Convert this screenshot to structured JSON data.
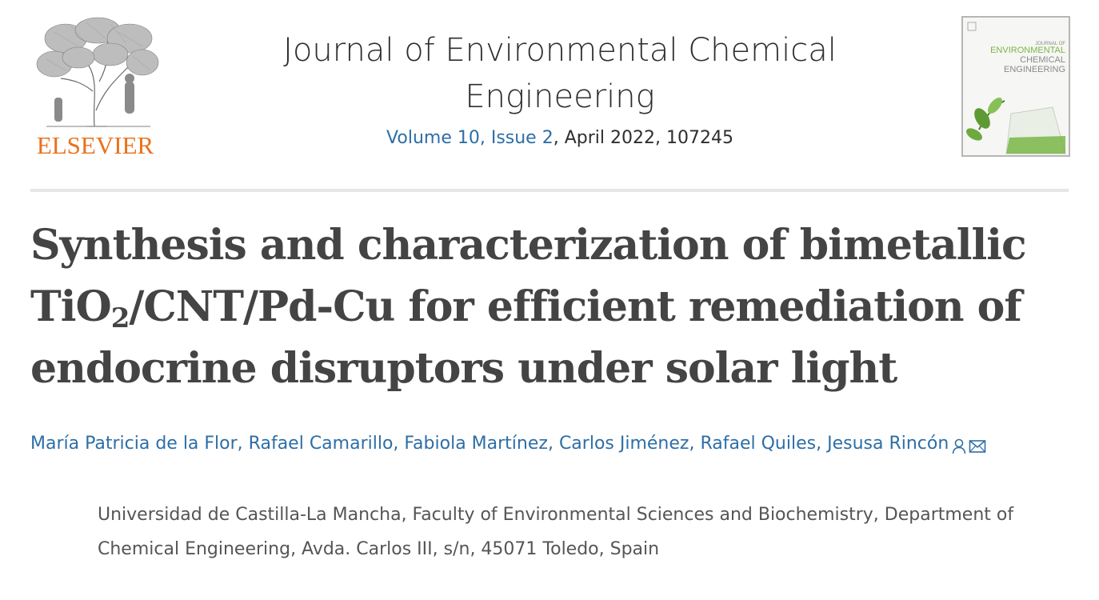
{
  "publisher": {
    "name": "ELSEVIER",
    "logo_icon": "elsevier-tree-logo",
    "brand_color": "#e9711c"
  },
  "journal": {
    "title_line1": "Journal of Environmental Chemical",
    "title_line2": "Engineering",
    "volume_issue": "Volume 10, Issue 2",
    "date_article": ", April 2022, 107245",
    "cover": {
      "small": "JOURNAL OF",
      "line1": "ENVIRONMENTAL",
      "line2": "CHEMICAL",
      "line3": "ENGINEERING"
    }
  },
  "article": {
    "title_line1": "Synthesis and characterization of bimetallic",
    "title_line2_pre": "TiO",
    "title_line2_sub": "2",
    "title_line2_post": "/CNT/Pd-Cu for efficient remediation of",
    "title_line3": "endocrine disruptors under solar light"
  },
  "authors": [
    "María Patricia de la Flor",
    "Rafael Camarillo",
    "Fabiola Martínez",
    "Carlos Jiménez",
    "Rafael Quiles",
    "Jesusa Rincón"
  ],
  "author_separator": ", ",
  "author_icons": [
    "person-icon",
    "envelope-icon"
  ],
  "affiliation": {
    "line1": "Universidad de Castilla-La Mancha, Faculty of Environmental Sciences and Biochemistry, Department of",
    "line2": "Chemical Engineering, Avda. Carlos III, s/n, 45071 Toledo, Spain"
  },
  "colors": {
    "link": "#2e6ea6",
    "text": "#323232",
    "title": "#444444",
    "cover_green": "#7ab648",
    "cover_gray": "#8a8a8a"
  }
}
